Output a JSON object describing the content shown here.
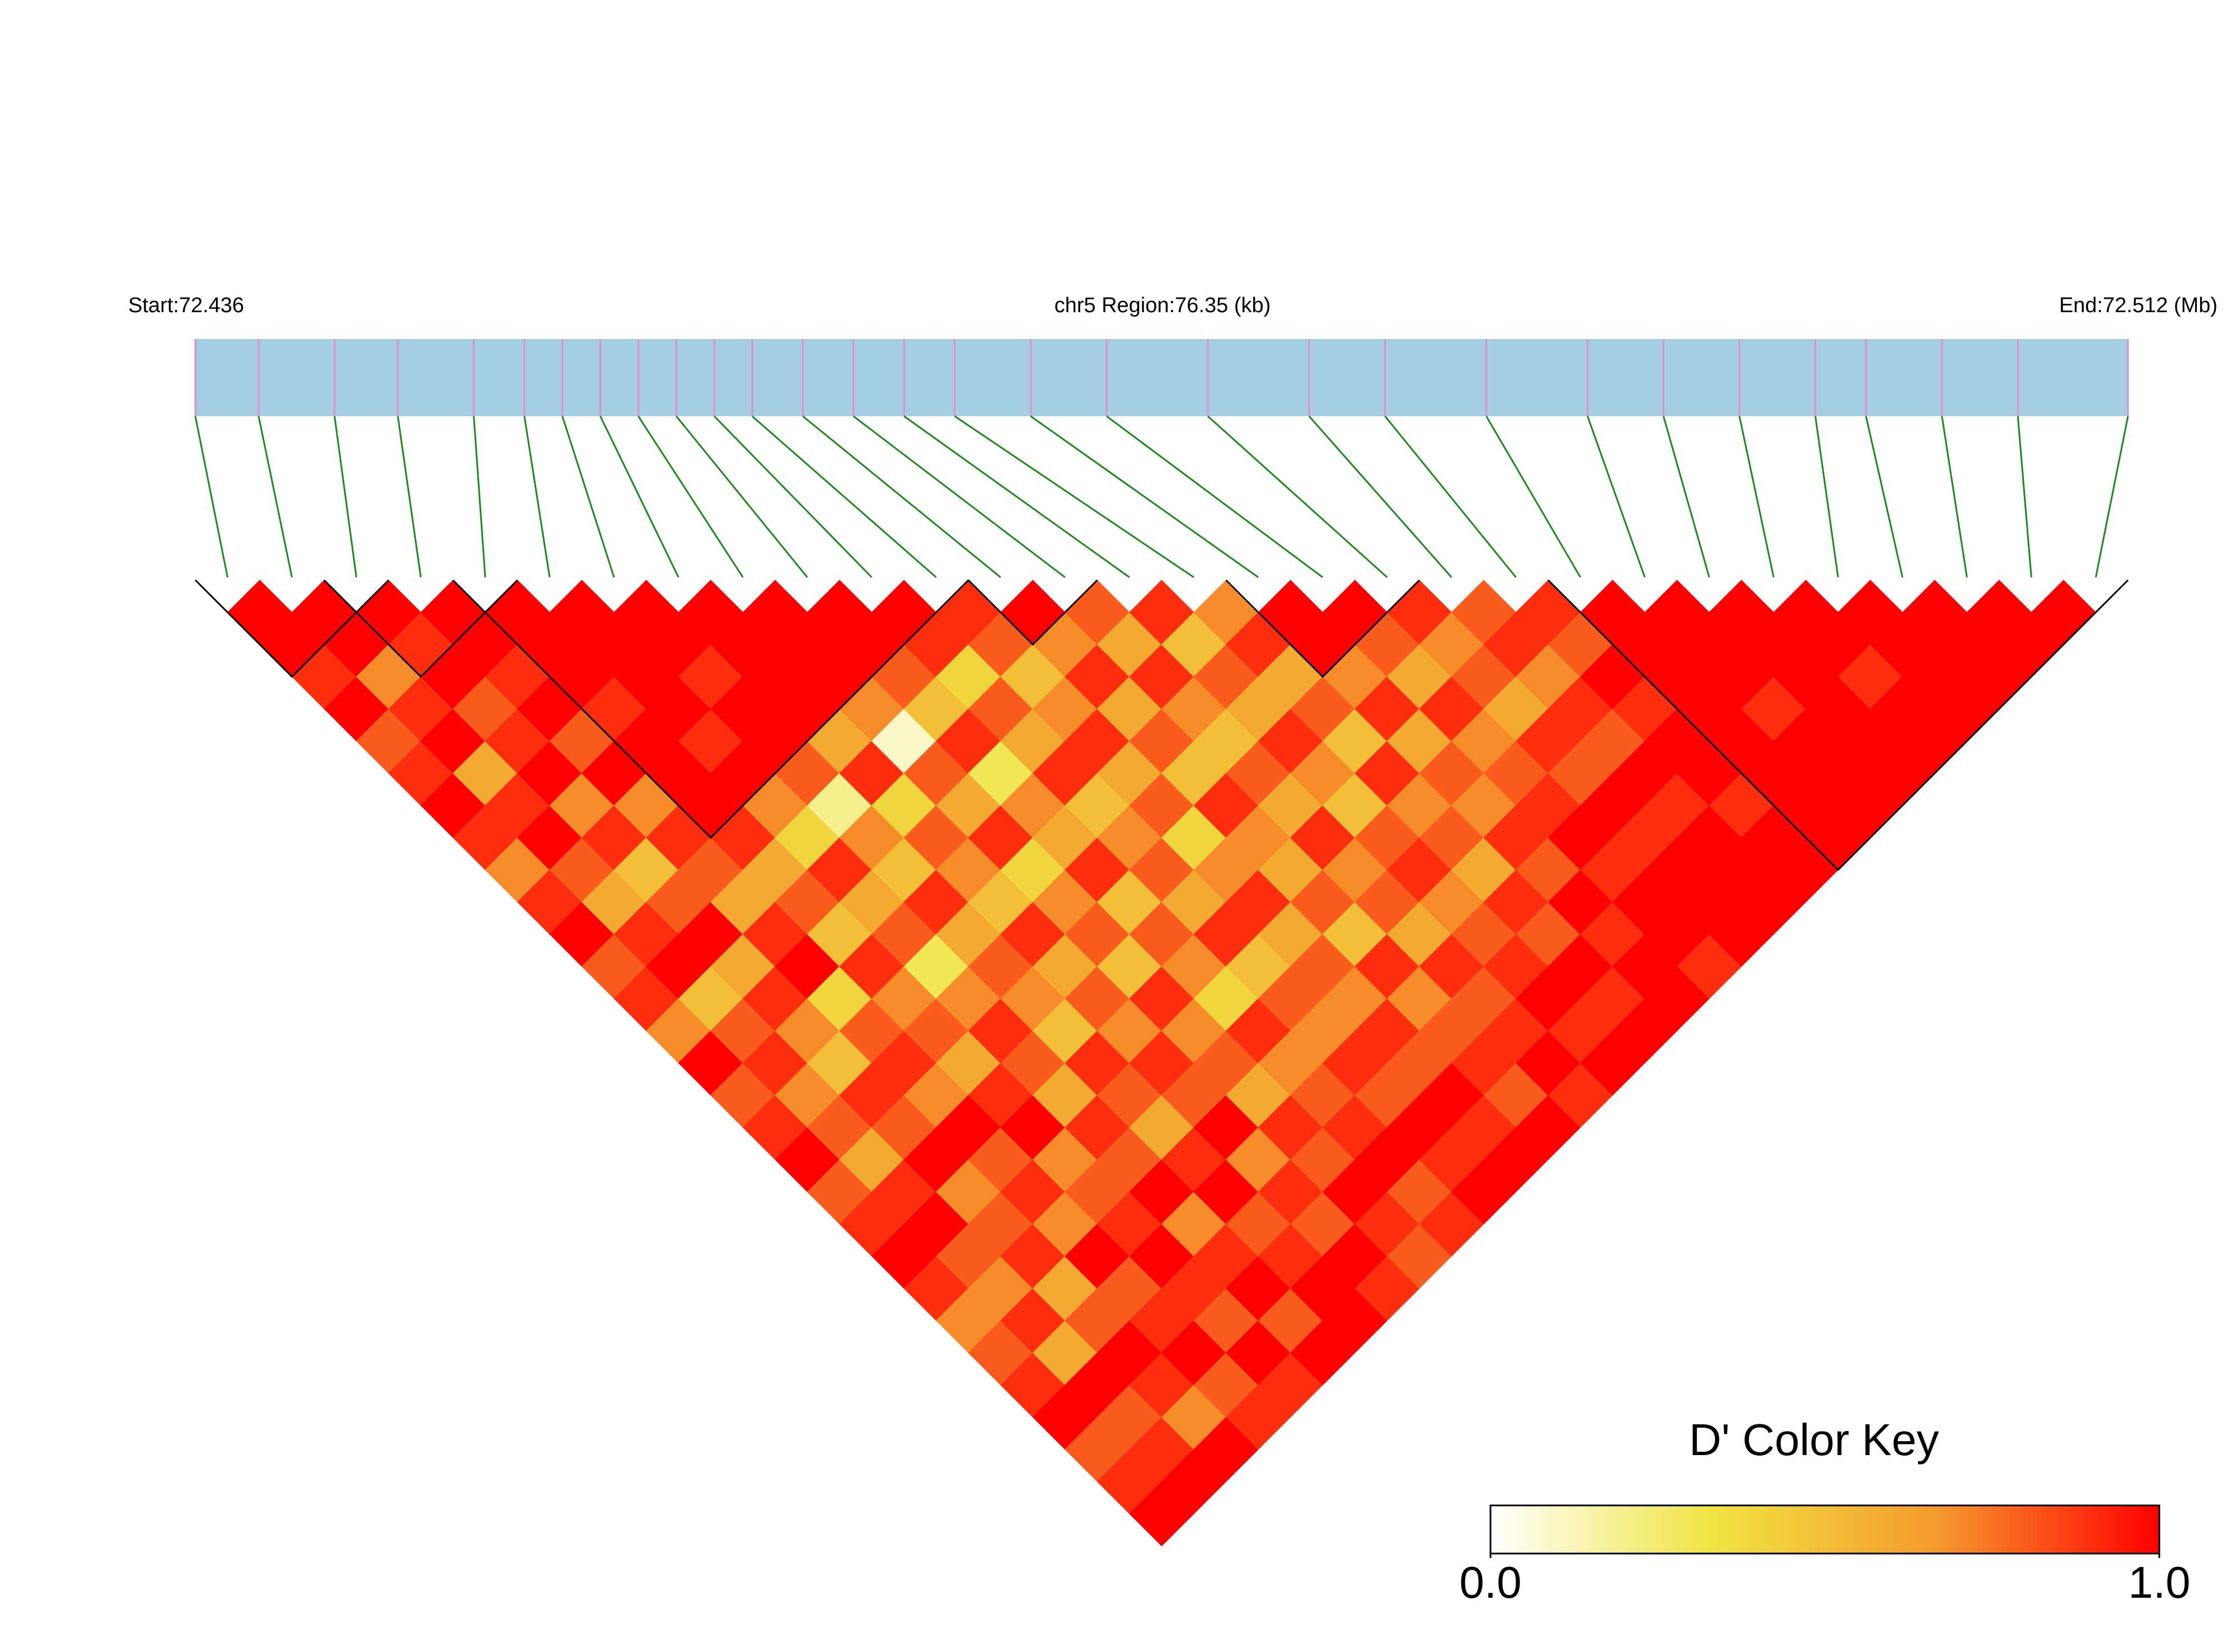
{
  "chart_data": {
    "type": "ld_heatmap",
    "start_label": "Start:72.436",
    "region_label": "chr5 Region:76.35 (kb)",
    "end_label": "End:72.512 (Mb)",
    "snp_positions": [
      0,
      2.5,
      5.5,
      8,
      11,
      13,
      14.5,
      16,
      17.5,
      19,
      20.5,
      22,
      24,
      26,
      28,
      30,
      33,
      36,
      40,
      44,
      47,
      51,
      55,
      58,
      61,
      64,
      66,
      69,
      72,
      76.35
    ],
    "position_lim": [
      0,
      76.35
    ],
    "ld": [
      [
        1,
        1,
        0.9,
        1,
        0.8,
        0.9,
        1,
        0.9,
        0.7,
        0.9,
        1,
        0.8,
        0.9,
        0.7,
        1,
        0.8,
        0.9,
        1,
        0.8,
        0.9,
        1,
        0.9,
        0.7,
        0.8,
        0.9,
        1,
        0.8,
        0.9,
        1
      ],
      [
        1,
        1,
        0.7,
        0.9,
        1,
        0.6,
        0.9,
        1,
        0.8,
        0.6,
        0.9,
        1,
        0.5,
        0.8,
        0.9,
        0.7,
        0.8,
        0.6,
        0.9,
        1,
        0.8,
        0.7,
        0.9,
        0.6,
        1,
        0.8,
        0.9,
        1
      ],
      [
        1,
        0.9,
        1,
        0.8,
        0.9,
        1,
        0.7,
        0.9,
        0.5,
        0.8,
        1,
        0.6,
        0.9,
        0.7,
        0.5,
        0.9,
        0.8,
        1,
        0.7,
        0.8,
        0.9,
        0.6,
        0.8,
        1,
        0.9,
        0.7,
        1
      ],
      [
        1,
        1,
        0.9,
        1,
        0.8,
        1,
        0.7,
        0.9,
        0.8,
        0.6,
        0.9,
        1,
        0.4,
        0.8,
        0.9,
        0.7,
        1,
        0.8,
        0.9,
        0.7,
        1,
        0.8,
        0.9,
        1,
        0.8,
        0.9
      ],
      [
        1,
        1,
        1,
        0.9,
        1,
        1,
        1,
        0.9,
        0.6,
        0.8,
        0.5,
        0.9,
        0.7,
        0.8,
        0.6,
        0.9,
        1,
        0.7,
        0.8,
        0.9,
        1,
        0.9,
        0.8,
        1,
        0.9
      ],
      [
        1,
        1,
        1,
        1,
        0.9,
        1,
        0.7,
        0.4,
        0.9,
        0.6,
        0.8,
        0.3,
        0.7,
        0.9,
        0.8,
        0.6,
        0.9,
        0.8,
        1,
        0.7,
        0.9,
        1,
        0.8,
        1
      ],
      [
        1,
        1,
        0.9,
        1,
        1,
        0.8,
        0.2,
        0.7,
        0.5,
        0.9,
        0.6,
        0.8,
        0.7,
        0.5,
        0.9,
        0.8,
        0.6,
        0.9,
        1,
        0.8,
        0.9,
        1,
        1
      ],
      [
        1,
        1,
        1,
        1,
        0.6,
        0.9,
        0.4,
        0.8,
        0.7,
        0.5,
        0.9,
        0.6,
        0.8,
        0.7,
        0.9,
        0.8,
        1,
        0.7,
        0.9,
        0.8,
        1,
        0.9
      ],
      [
        1,
        1,
        1,
        0.7,
        0.1,
        0.8,
        0.6,
        0.9,
        0.4,
        0.7,
        0.8,
        0.5,
        0.9,
        0.7,
        0.8,
        0.6,
        0.9,
        0.8,
        1,
        0.9,
        0.8
      ],
      [
        1,
        1,
        0.8,
        0.5,
        0.9,
        0.3,
        0.7,
        0.6,
        0.9,
        0.5,
        0.8,
        0.7,
        0.4,
        0.9,
        0.7,
        0.8,
        0.9,
        1,
        0.8,
        0.9
      ],
      [
        1,
        0.9,
        0.4,
        0.8,
        0.6,
        0.9,
        0.5,
        0.7,
        0.8,
        0.6,
        0.9,
        0.5,
        0.8,
        0.7,
        0.9,
        0.8,
        1,
        0.9,
        1
      ],
      [
        0.9,
        0.8,
        0.5,
        0.7,
        0.9,
        0.6,
        0.8,
        0.4,
        0.7,
        0.9,
        0.6,
        0.8,
        0.7,
        0.9,
        0.8,
        1,
        0.9,
        1
      ],
      [
        1,
        0.7,
        0.9,
        0.6,
        0.8,
        0.5,
        0.9,
        0.7,
        0.6,
        0.8,
        0.5,
        0.9,
        0.7,
        0.8,
        0.9,
        0.8,
        1
      ],
      [
        0.8,
        0.6,
        0.9,
        0.7,
        0.5,
        0.8,
        0.6,
        0.9,
        0.7,
        0.8,
        0.6,
        0.9,
        0.8,
        0.9,
        1,
        0.9
      ],
      [
        0.9,
        0.5,
        0.8,
        0.6,
        0.9,
        0.7,
        0.5,
        0.8,
        0.9,
        0.7,
        0.8,
        0.9,
        1,
        0.9,
        1
      ],
      [
        0.7,
        0.9,
        0.6,
        0.8,
        0.5,
        0.9,
        0.7,
        0.8,
        0.6,
        0.9,
        0.8,
        1,
        0.9,
        1
      ],
      [
        1,
        1,
        0.7,
        0.9,
        0.6,
        0.8,
        0.7,
        0.9,
        0.8,
        1,
        0.9,
        1,
        1
      ],
      [
        1,
        0.8,
        0.6,
        0.9,
        0.7,
        0.8,
        0.9,
        1,
        0.9,
        1,
        1,
        0.9
      ],
      [
        0.9,
        0.7,
        0.8,
        0.6,
        0.9,
        0.8,
        1,
        0.9,
        1,
        1,
        1
      ],
      [
        0.8,
        0.9,
        0.7,
        0.9,
        0.8,
        1,
        0.9,
        1,
        1,
        1
      ],
      [
        0.9,
        0.8,
        1,
        0.9,
        1,
        1,
        0.9,
        1,
        1
      ],
      [
        1,
        1,
        1,
        1,
        1,
        1,
        1,
        1
      ],
      [
        1,
        1,
        1,
        0.9,
        1,
        1,
        1
      ],
      [
        1,
        1,
        1,
        1,
        1,
        1
      ],
      [
        1,
        1,
        0.9,
        1,
        1
      ],
      [
        1,
        1,
        1,
        1
      ],
      [
        1,
        1,
        1
      ],
      [
        1,
        1
      ],
      [
        1
      ]
    ],
    "blocks": [
      [
        0,
        2
      ],
      [
        2,
        4
      ],
      [
        4,
        11
      ],
      [
        12,
        13
      ],
      [
        16,
        18
      ],
      [
        21,
        29
      ]
    ],
    "bar_color": "#a6cee3",
    "snp_tick_color": "#e38ccb",
    "link_color": "#1a8a1a",
    "colors": [
      "#ffffff",
      "#f0e442",
      "#f59a2e",
      "#ff0000"
    ],
    "key_title": "D' Color Key",
    "key_lim": [
      0,
      1
    ],
    "key_ticks": [
      {
        "value": 0,
        "label": "0.0"
      },
      {
        "value": 1,
        "label": "1.0"
      }
    ]
  }
}
